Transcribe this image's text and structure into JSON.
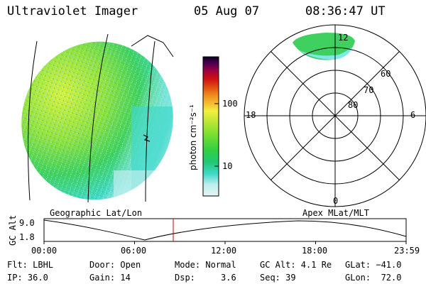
{
  "header": {
    "instrument": "Ultraviolet Imager",
    "date": "05 Aug 07",
    "time": "08:36:47 UT"
  },
  "colorbar": {
    "unit_label": "photon cm⁻²s⁻¹",
    "ticks": [
      {
        "label": "100",
        "value": 100
      },
      {
        "label": "10",
        "value": 10
      }
    ],
    "colors": [
      "#e8f4f4",
      "#bfeeee",
      "#7fe8e8",
      "#40d8c8",
      "#20c878",
      "#30d040",
      "#80e030",
      "#c8e838",
      "#f0f040",
      "#f8c030",
      "#f09020",
      "#e05010",
      "#d01010",
      "#a00040",
      "#600060",
      "#300040",
      "#100020"
    ]
  },
  "polar_plot": {
    "mlt_labels": {
      "top": "12",
      "left": "18",
      "right": "6",
      "bottom": "0"
    },
    "lat_labels": [
      "60",
      "70",
      "80"
    ]
  },
  "timeline": {
    "left_label": "Geographic Lat/Lon",
    "right_label": "Apex MLat/MLT",
    "y_axis_label": "GC Alt",
    "y_ticks": [
      "9.0",
      "1.8"
    ],
    "x_ticks": [
      "00:00",
      "06:00",
      "12:00",
      "18:00",
      "23:59"
    ],
    "current_time_marker": "08:36",
    "accent_color": "#cc0000"
  },
  "footer": {
    "flt": "Flt: LBHL",
    "ip": "IP: 36.0",
    "door": "Door: Open",
    "gain": "Gain: 14",
    "mode": "Mode: Normal",
    "dsp": "Dsp:     3.6",
    "gcalt": "GC Alt: 4.1 Re",
    "seq": "Seq: 39",
    "glat": "GLat: −41.0",
    "glon": "GLon:  72.0"
  }
}
